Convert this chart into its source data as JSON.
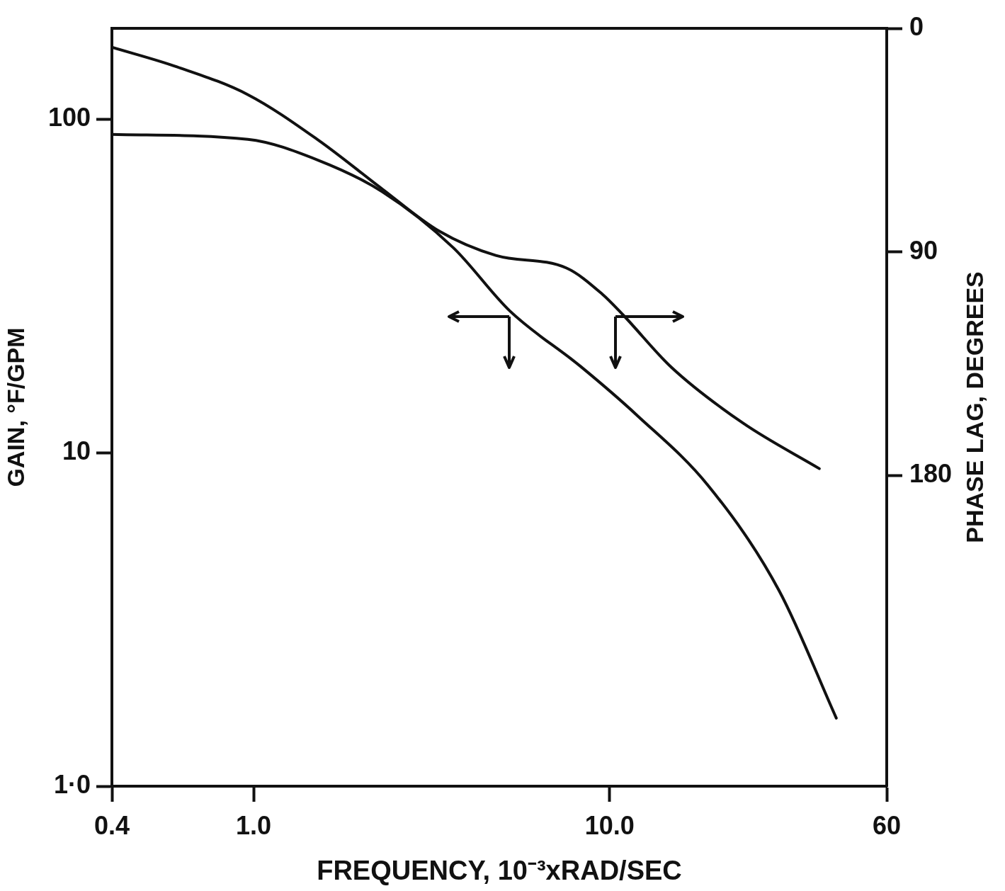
{
  "chart_data": {
    "type": "line",
    "xlabel": "FREQUENCY, 10⁻³xRAD/SEC",
    "ylabel": "GAIN, °F/GPM",
    "y2label": "PHASE LAG, DEGREES",
    "log": "xy",
    "grid": false,
    "marker": "none",
    "line_style": "solid",
    "xlim": [
      0.4,
      60
    ],
    "ylim": [
      1,
      187
    ],
    "y2lim": [
      305,
      0
    ],
    "xticks": [
      {
        "value": 0.4,
        "label": "0.4"
      },
      {
        "value": 1,
        "label": "1.0"
      },
      {
        "value": 10,
        "label": "10.0"
      },
      60
    ],
    "yticks": [
      {
        "value": 1,
        "label": "1·0"
      },
      10,
      100
    ],
    "y2ticks": [
      0,
      90,
      180
    ],
    "series": [
      {
        "color": "#111111",
        "axis": "y",
        "x": [
          0.4,
          0.964,
          1.52,
          2.3,
          3.64,
          5.24,
          8.3,
          11.97,
          18.9,
          29.9,
          43.3
        ],
        "values": [
          89.9,
          86.9,
          75.2,
          60.5,
          41.1,
          26.6,
          18.1,
          12.9,
          7.97,
          3.86,
          1.6
        ]
      },
      {
        "color": "#111111",
        "axis": "y2",
        "x": [
          0.4,
          0.609,
          0.964,
          1.52,
          2.3,
          3.32,
          4.79,
          7.57,
          9.52,
          10.9,
          14.9,
          23.7,
          38.8
        ],
        "values": [
          7.6,
          15.5,
          26.7,
          45,
          64.7,
          81.6,
          91.4,
          96.5,
          106.9,
          115.3,
          136.4,
          158.9,
          177.2
        ]
      }
    ]
  }
}
